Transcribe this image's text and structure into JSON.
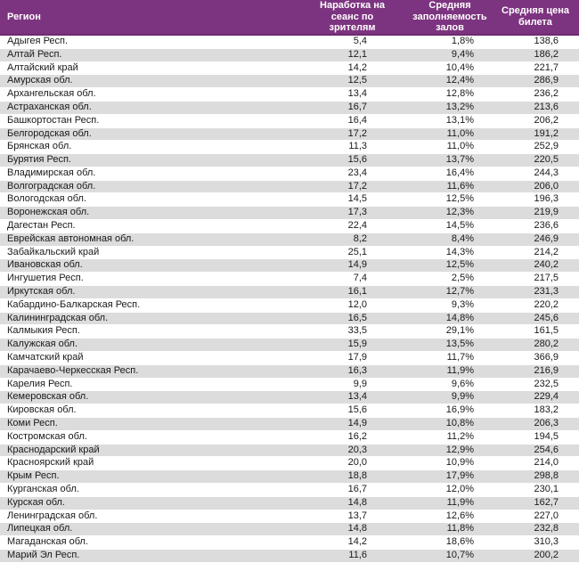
{
  "colors": {
    "header_bg": "#7D3480",
    "header_border": "#6C2A6E",
    "header_text": "#FFFFFF",
    "stripe": "#DCDCDC",
    "text": "#1A1A1A"
  },
  "table": {
    "columns": [
      {
        "id": "region",
        "label": "Регион"
      },
      {
        "id": "attendance",
        "label": "Наработка на\nсеанс по зрителям"
      },
      {
        "id": "occupancy",
        "label": "Средняя\nзаполняемость\nзалов"
      },
      {
        "id": "price",
        "label": "Средняя цена\nбилета"
      }
    ],
    "rows": [
      {
        "region": "Адыгея Респ.",
        "attendance": "5,4",
        "occupancy": "1,8%",
        "price": "138,6"
      },
      {
        "region": "Алтай Респ.",
        "attendance": "12,1",
        "occupancy": "9,4%",
        "price": "186,2"
      },
      {
        "region": "Алтайский край",
        "attendance": "14,2",
        "occupancy": "10,4%",
        "price": "221,7"
      },
      {
        "region": "Амурская обл.",
        "attendance": "12,5",
        "occupancy": "12,4%",
        "price": "286,9"
      },
      {
        "region": "Архангельская обл.",
        "attendance": "13,4",
        "occupancy": "12,8%",
        "price": "236,2"
      },
      {
        "region": "Астраханская обл.",
        "attendance": "16,7",
        "occupancy": "13,2%",
        "price": "213,6"
      },
      {
        "region": "Башкортостан Респ.",
        "attendance": "16,4",
        "occupancy": "13,1%",
        "price": "206,2"
      },
      {
        "region": "Белгородская обл.",
        "attendance": "17,2",
        "occupancy": "11,0%",
        "price": "191,2"
      },
      {
        "region": "Брянская обл.",
        "attendance": "11,3",
        "occupancy": "11,0%",
        "price": "252,9"
      },
      {
        "region": "Бурятия Респ.",
        "attendance": "15,6",
        "occupancy": "13,7%",
        "price": "220,5"
      },
      {
        "region": "Владимирская обл.",
        "attendance": "23,4",
        "occupancy": "16,4%",
        "price": "244,3"
      },
      {
        "region": "Волгоградская обл.",
        "attendance": "17,2",
        "occupancy": "11,6%",
        "price": "206,0"
      },
      {
        "region": "Вологодская обл.",
        "attendance": "14,5",
        "occupancy": "12,5%",
        "price": "196,3"
      },
      {
        "region": "Воронежская обл.",
        "attendance": "17,3",
        "occupancy": "12,3%",
        "price": "219,9"
      },
      {
        "region": "Дагестан Респ.",
        "attendance": "22,4",
        "occupancy": "14,5%",
        "price": "236,6"
      },
      {
        "region": "Еврейская автономная обл.",
        "attendance": "8,2",
        "occupancy": "8,4%",
        "price": "246,9"
      },
      {
        "region": "Забайкальский край",
        "attendance": "25,1",
        "occupancy": "14,3%",
        "price": "214,2"
      },
      {
        "region": "Ивановская обл.",
        "attendance": "14,9",
        "occupancy": "12,5%",
        "price": "240,2"
      },
      {
        "region": "Ингушетия Респ.",
        "attendance": "7,4",
        "occupancy": "2,5%",
        "price": "217,5"
      },
      {
        "region": "Иркутская обл.",
        "attendance": "16,1",
        "occupancy": "12,7%",
        "price": "231,3"
      },
      {
        "region": "Кабардино-Балкарская Респ.",
        "attendance": "12,0",
        "occupancy": "9,3%",
        "price": "220,2"
      },
      {
        "region": "Калининградская обл.",
        "attendance": "16,5",
        "occupancy": "14,8%",
        "price": "245,6"
      },
      {
        "region": "Калмыкия Респ.",
        "attendance": "33,5",
        "occupancy": "29,1%",
        "price": "161,5"
      },
      {
        "region": "Калужская обл.",
        "attendance": "15,9",
        "occupancy": "13,5%",
        "price": "280,2"
      },
      {
        "region": "Камчатский край",
        "attendance": "17,9",
        "occupancy": "11,7%",
        "price": "366,9"
      },
      {
        "region": "Карачаево-Черкесская Респ.",
        "attendance": "16,3",
        "occupancy": "11,9%",
        "price": "216,9"
      },
      {
        "region": "Карелия Респ.",
        "attendance": "9,9",
        "occupancy": "9,6%",
        "price": "232,5"
      },
      {
        "region": "Кемеровская обл.",
        "attendance": "13,4",
        "occupancy": "9,9%",
        "price": "229,4"
      },
      {
        "region": "Кировская обл.",
        "attendance": "15,6",
        "occupancy": "16,9%",
        "price": "183,2"
      },
      {
        "region": "Коми Респ.",
        "attendance": "14,9",
        "occupancy": "10,8%",
        "price": "206,3"
      },
      {
        "region": "Костромская обл.",
        "attendance": "16,2",
        "occupancy": "11,2%",
        "price": "194,5"
      },
      {
        "region": "Краснодарский край",
        "attendance": "20,3",
        "occupancy": "12,9%",
        "price": "254,6"
      },
      {
        "region": "Красноярский край",
        "attendance": "20,0",
        "occupancy": "10,9%",
        "price": "214,0"
      },
      {
        "region": "Крым Респ.",
        "attendance": "18,8",
        "occupancy": "17,9%",
        "price": "298,8"
      },
      {
        "region": "Курганская обл.",
        "attendance": "16,7",
        "occupancy": "12,0%",
        "price": "230,1"
      },
      {
        "region": "Курская обл.",
        "attendance": "14,8",
        "occupancy": "11,9%",
        "price": "162,7"
      },
      {
        "region": "Ленинградская обл.",
        "attendance": "13,7",
        "occupancy": "12,6%",
        "price": "227,0"
      },
      {
        "region": "Липецкая обл.",
        "attendance": "14,8",
        "occupancy": "11,8%",
        "price": "232,8"
      },
      {
        "region": "Магаданская обл.",
        "attendance": "14,2",
        "occupancy": "18,6%",
        "price": "310,3"
      },
      {
        "region": "Марий Эл Респ.",
        "attendance": "11,6",
        "occupancy": "10,7%",
        "price": "200,2"
      }
    ]
  }
}
